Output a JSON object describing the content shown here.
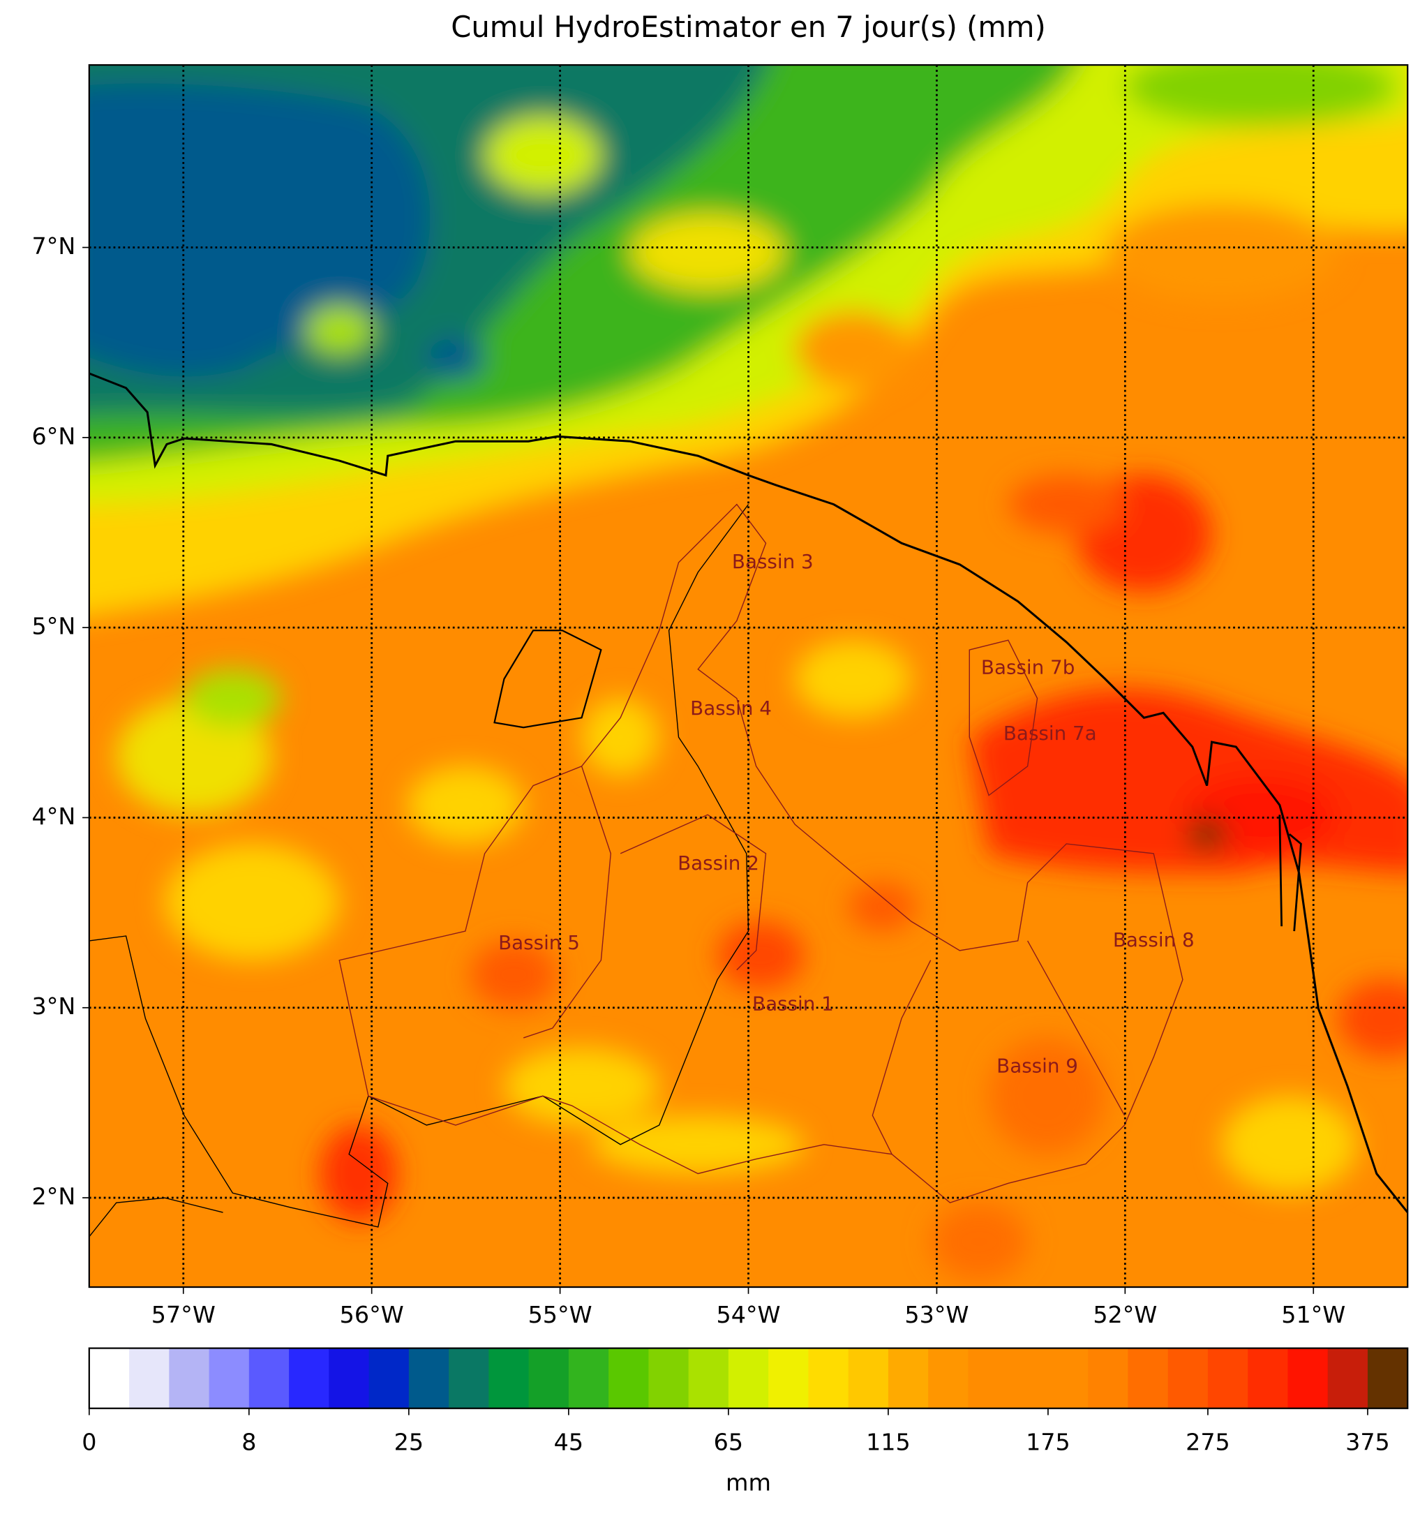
{
  "chart_data": {
    "type": "map",
    "title": "Cumul HydroEstimator en 7 jour(s) (mm)",
    "xlim": [
      -57.5,
      -50.5
    ],
    "ylim": [
      1.53,
      7.96
    ],
    "xticks": [
      {
        "value": -57,
        "label": "57°W"
      },
      {
        "value": -56,
        "label": "56°W"
      },
      {
        "value": -55,
        "label": "55°W"
      },
      {
        "value": -54,
        "label": "54°W"
      },
      {
        "value": -53,
        "label": "53°W"
      },
      {
        "value": -52,
        "label": "52°W"
      },
      {
        "value": -51,
        "label": "51°W"
      }
    ],
    "yticks": [
      {
        "value": 2,
        "label": "2°N"
      },
      {
        "value": 3,
        "label": "3°N"
      },
      {
        "value": 4,
        "label": "4°N"
      },
      {
        "value": 5,
        "label": "5°N"
      },
      {
        "value": 6,
        "label": "6°N"
      },
      {
        "value": 7,
        "label": "7°N"
      }
    ],
    "grid": true,
    "annotations": [
      "Bassin 3",
      "Bassin 4",
      "Bassin 7b",
      "Bassin 7a",
      "Bassin 2",
      "Bassin 5",
      "Bassin 8",
      "Bassin 1",
      "Bassin 9"
    ],
    "colorbar": {
      "label": "mm",
      "colors": [
        "#ffffff",
        "#e6e6fa",
        "#b4b4f5",
        "#8c8cff",
        "#5a5aff",
        "#2828ff",
        "#1414e6",
        "#0028c8",
        "#005a8c",
        "#0a7864",
        "#00963c",
        "#14a028",
        "#32b41e",
        "#5ac800",
        "#82d200",
        "#aae100",
        "#d2f000",
        "#f0f000",
        "#ffdc00",
        "#ffc800",
        "#ffaa00",
        "#ff9600",
        "#ff8c00",
        "#ff8c00",
        "#ff8c00",
        "#ff8200",
        "#ff6e00",
        "#ff5a00",
        "#ff4600",
        "#ff2d00",
        "#ff1400",
        "#c81e0a",
        "#643200"
      ],
      "ticks": [
        0,
        8,
        25,
        45,
        65,
        115,
        175,
        275,
        375
      ]
    }
  }
}
